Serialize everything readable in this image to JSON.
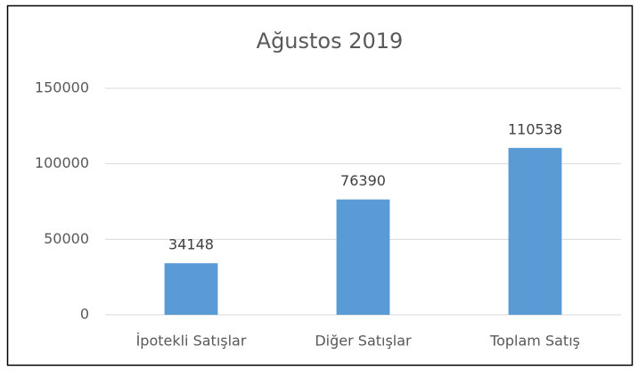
{
  "chart_data": {
    "type": "bar",
    "title": "Ağustos 2019",
    "categories": [
      "İpotekli Satışlar",
      "Diğer Satışlar",
      "Toplam Satış"
    ],
    "values": [
      34148,
      76390,
      110538
    ],
    "color": "#5b9bd5",
    "ylim": [
      0,
      150000
    ],
    "yticks": [
      0,
      50000,
      100000,
      150000
    ],
    "grid": true
  }
}
